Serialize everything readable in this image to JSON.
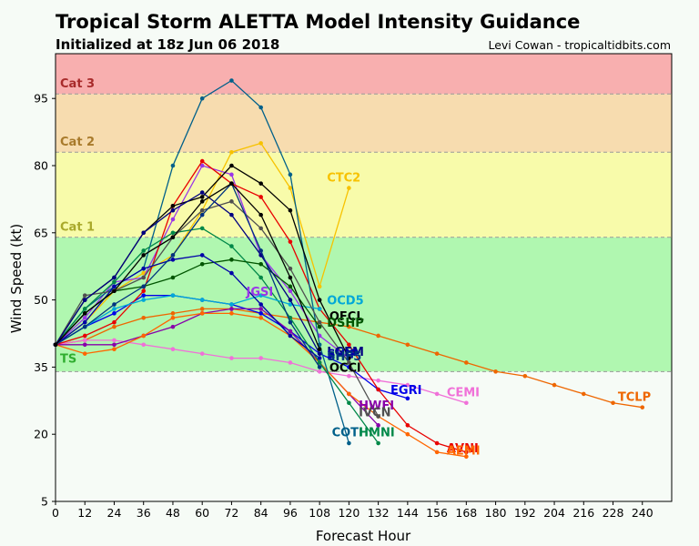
{
  "chart_data": {
    "type": "line",
    "title": "Tropical Storm ALETTA Model Intensity Guidance",
    "subtitle": "Initialized at 18z Jun 06 2018",
    "credit": "Levi Cowan - tropicaltidbits.com",
    "xlabel": "Forecast Hour",
    "ylabel": "Wind Speed (kt)",
    "xlim": [
      0,
      252
    ],
    "ylim": [
      5,
      105
    ],
    "xticks": [
      0,
      12,
      24,
      36,
      48,
      60,
      72,
      84,
      96,
      108,
      120,
      132,
      144,
      156,
      168,
      180,
      192,
      204,
      216,
      228,
      240
    ],
    "yticks": [
      5,
      20,
      35,
      50,
      65,
      80,
      95
    ],
    "bands": [
      {
        "name": "TS",
        "from": 34,
        "to": 64,
        "fill": "#b0f7b0",
        "text_color": "#2fae2f",
        "label_y": 37
      },
      {
        "name": "Cat 1",
        "from": 64,
        "to": 83,
        "fill": "#f8fbaa",
        "text_color": "#a9a92b",
        "label_y": 66.5
      },
      {
        "name": "Cat 2",
        "from": 83,
        "to": 96,
        "fill": "#f7dcaf",
        "text_color": "#a87a2b",
        "label_y": 85.5
      },
      {
        "name": "Cat 3",
        "from": 96,
        "to": 105,
        "fill": "#f8afaf",
        "text_color": "#a82b2b",
        "label_y": 98.5
      }
    ],
    "series": [
      {
        "name": "TCLP",
        "color": "#ee6600",
        "x": [
          0,
          12,
          24,
          36,
          48,
          60,
          72,
          84,
          96,
          108,
          120,
          132,
          144,
          156,
          168,
          180,
          192,
          204,
          216,
          228,
          240
        ],
        "y": [
          40,
          41,
          44,
          46,
          47,
          48,
          48,
          47,
          46,
          45,
          44,
          42,
          40,
          38,
          36,
          34,
          33,
          31,
          29,
          27,
          26
        ]
      },
      {
        "name": "CTC2",
        "color": "#f7c200",
        "x": [
          0,
          12,
          24,
          36,
          48,
          60,
          72,
          84,
          96,
          108,
          120
        ],
        "y": [
          40,
          45,
          52,
          56,
          60,
          70,
          83,
          85,
          75,
          53,
          75
        ]
      },
      {
        "name": "CEMI",
        "color": "#f070d8",
        "x": [
          0,
          12,
          24,
          36,
          48,
          60,
          72,
          84,
          96,
          108,
          120,
          132,
          144,
          156,
          168
        ],
        "y": [
          40,
          41,
          41,
          40,
          39,
          38,
          37,
          37,
          36,
          34,
          33,
          32,
          31,
          29,
          27
        ]
      },
      {
        "name": "EGRI",
        "color": "#0000e8",
        "x": [
          0,
          12,
          24,
          36,
          48,
          60,
          72,
          84,
          96,
          108,
          120,
          132,
          144
        ],
        "y": [
          40,
          44,
          47,
          51,
          51,
          50,
          49,
          47,
          43,
          38,
          35,
          30,
          28
        ]
      },
      {
        "name": "HWFI",
        "color": "#8800aa",
        "x": [
          0,
          12,
          24,
          36,
          48,
          60,
          72,
          84,
          96,
          108,
          120,
          132
        ],
        "y": [
          40,
          40,
          40,
          42,
          44,
          47,
          48,
          48,
          43,
          36,
          29,
          22
        ]
      },
      {
        "name": "JGSI",
        "color": "#9a35e8",
        "x": [
          0,
          12,
          24,
          36,
          48,
          60,
          72,
          84,
          96,
          108,
          120
        ],
        "y": [
          40,
          46,
          54,
          55,
          68,
          80,
          78,
          60,
          52,
          42,
          37
        ]
      },
      {
        "name": "AVNI",
        "color": "#e80000",
        "x": [
          0,
          12,
          24,
          36,
          48,
          60,
          72,
          84,
          96,
          108,
          120,
          132,
          144,
          156,
          168
        ],
        "y": [
          40,
          42,
          45,
          52,
          71,
          81,
          76,
          73,
          63,
          48,
          40,
          30,
          22,
          18,
          16
        ]
      },
      {
        "name": "AEMI",
        "color": "#ff6600",
        "x": [
          0,
          12,
          24,
          36,
          48,
          60,
          72,
          84,
          96,
          108,
          120,
          132,
          144,
          156,
          168
        ],
        "y": [
          40,
          38,
          39,
          42,
          46,
          47,
          47,
          46,
          42,
          36,
          29,
          24,
          20,
          16,
          15
        ]
      },
      {
        "name": "COTI",
        "color": "#00608a",
        "x": [
          0,
          12,
          24,
          36,
          48,
          60,
          72,
          84,
          96,
          108,
          120
        ],
        "y": [
          40,
          48,
          53,
          57,
          80,
          95,
          99,
          93,
          78,
          40,
          18
        ]
      },
      {
        "name": "HMNI",
        "color": "#008848",
        "x": [
          0,
          12,
          24,
          36,
          48,
          60,
          72,
          84,
          96,
          108,
          120,
          132
        ],
        "y": [
          40,
          48,
          54,
          61,
          65,
          66,
          62,
          55,
          46,
          36,
          27,
          18
        ]
      },
      {
        "name": "OCD5",
        "color": "#00a8d8",
        "x": [
          0,
          12,
          24,
          36,
          48,
          60,
          72,
          84,
          96,
          108
        ],
        "y": [
          40,
          44,
          48,
          50,
          51,
          50,
          49,
          51,
          49,
          48
        ]
      },
      {
        "name": "OFCL",
        "color": "#000000",
        "x": [
          0,
          12,
          24,
          36,
          48,
          60,
          72,
          84,
          96,
          108,
          120
        ],
        "y": [
          40,
          50,
          55,
          65,
          71,
          73,
          80,
          76,
          70,
          50,
          37
        ]
      },
      {
        "name": "DSHP",
        "color": "#005500",
        "x": [
          0,
          12,
          24,
          36,
          48,
          60,
          72,
          84,
          96,
          108
        ],
        "y": [
          40,
          47,
          52,
          53,
          55,
          58,
          59,
          58,
          53,
          44
        ]
      },
      {
        "name": "IVCN",
        "color": "#505050",
        "x": [
          0,
          12,
          24,
          36,
          48,
          60,
          72,
          84,
          96,
          108,
          120,
          132
        ],
        "y": [
          40,
          51,
          52,
          55,
          64,
          70,
          72,
          66,
          57,
          45,
          36,
          24
        ]
      },
      {
        "name": "LGEM",
        "color": "#000080",
        "x": [
          0,
          12,
          24,
          36,
          48,
          60,
          72,
          84,
          96,
          108
        ],
        "y": [
          40,
          50,
          55,
          65,
          70,
          74,
          69,
          60,
          50,
          38
        ]
      },
      {
        "name": "SHIP",
        "color": "#0000a8",
        "x": [
          0,
          12,
          24,
          36,
          48,
          60,
          72,
          84,
          96,
          108
        ],
        "y": [
          40,
          45,
          53,
          57,
          59,
          60,
          56,
          49,
          42,
          37
        ]
      },
      {
        "name": "SHF5",
        "color": "#003380",
        "x": [
          0,
          12,
          24,
          36,
          48,
          60,
          72,
          84,
          96,
          108
        ],
        "y": [
          40,
          44,
          49,
          53,
          60,
          69,
          76,
          61,
          45,
          35
        ]
      },
      {
        "name": "OCCl",
        "color": "#000000",
        "x": [
          0,
          12,
          24,
          36,
          48,
          60,
          72,
          84,
          96,
          108
        ],
        "y": [
          40,
          47,
          52,
          60,
          64,
          72,
          76,
          69,
          55,
          39
        ]
      }
    ],
    "labels": [
      {
        "text": "TCLP",
        "x": 230,
        "y": 28.5,
        "color": "#ee6600"
      },
      {
        "text": "CTC2",
        "x": 111,
        "y": 77.5,
        "color": "#f7c200"
      },
      {
        "text": "CEMI",
        "x": 160,
        "y": 29.5,
        "color": "#f070d8"
      },
      {
        "text": "EGRI",
        "x": 137,
        "y": 30,
        "color": "#0000e8"
      },
      {
        "text": "HWFI",
        "x": 124,
        "y": 26.5,
        "color": "#8800aa"
      },
      {
        "text": "IVCN",
        "x": 124,
        "y": 25,
        "color": "#505050"
      },
      {
        "text": "JGSI",
        "x": 78,
        "y": 52,
        "color": "#9a35e8"
      },
      {
        "text": "OCD5",
        "x": 111,
        "y": 50,
        "color": "#00a8d8"
      },
      {
        "text": "OFCL",
        "x": 112,
        "y": 46.5,
        "color": "#000000"
      },
      {
        "text": "DSHP",
        "x": 111,
        "y": 45,
        "color": "#005500"
      },
      {
        "text": "LGEM",
        "x": 111,
        "y": 38.5,
        "color": "#000080"
      },
      {
        "text": "SHIP",
        "x": 111,
        "y": 38,
        "color": "#0000a8"
      },
      {
        "text": "SHF5",
        "x": 111,
        "y": 37.5,
        "color": "#003380"
      },
      {
        "text": "OCCl",
        "x": 112,
        "y": 35,
        "color": "#000000"
      },
      {
        "text": "AVNI",
        "x": 160,
        "y": 17,
        "color": "#e80000"
      },
      {
        "text": "AEMI",
        "x": 160,
        "y": 16.5,
        "color": "#ff6600"
      },
      {
        "text": "COTI",
        "x": 113,
        "y": 20.5,
        "color": "#00608a"
      },
      {
        "text": "HMNI",
        "x": 124,
        "y": 20.5,
        "color": "#008848"
      }
    ]
  }
}
